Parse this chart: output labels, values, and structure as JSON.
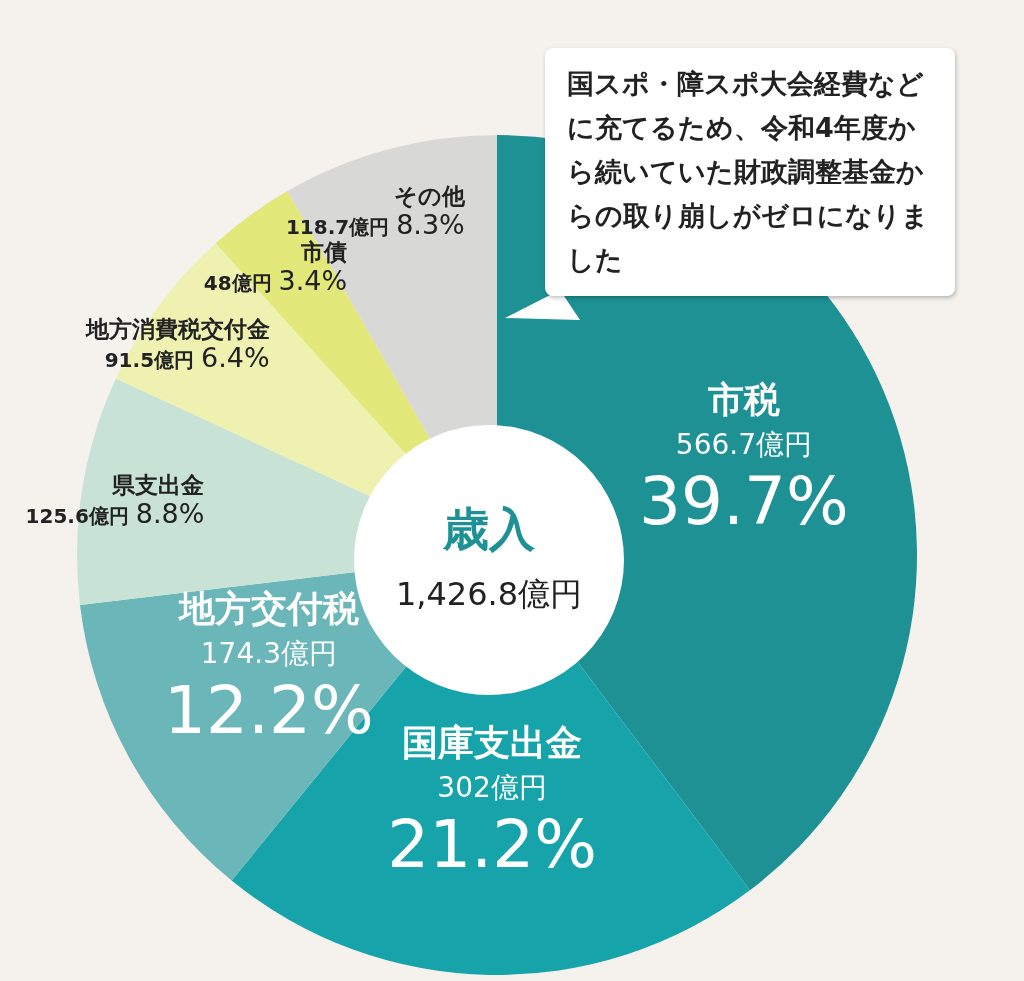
{
  "chart_data": {
    "type": "pie",
    "title": "歳入",
    "subtitle": "1,426.8億円",
    "categories": [
      "市税",
      "国庫支出金",
      "地方交付税",
      "県支出金",
      "地方消費税交付金",
      "市債",
      "その他"
    ],
    "values": [
      566.7,
      302,
      174.3,
      125.6,
      91.5,
      48,
      118.7
    ],
    "value_labels": [
      "566.7億円 39.7%",
      "302億円 21.2%",
      "174.3億円 12.2%",
      "125.6億円 8.8%",
      "91.5億円 6.4%",
      "48億円 3.4%",
      "118.7億円 8.3%"
    ],
    "colors": [
      "#1e9195",
      "#16a4aa",
      "#6ab6b9",
      "#c8e3d6",
      "#eef1b0",
      "#e3e87a",
      "#d8d8d6"
    ],
    "annotations": [
      "国スポ・障スポ大会経費などに充てるため、令和4年度から続いていた財政調整基金からの取り崩しがゼロになりました"
    ]
  }
}
